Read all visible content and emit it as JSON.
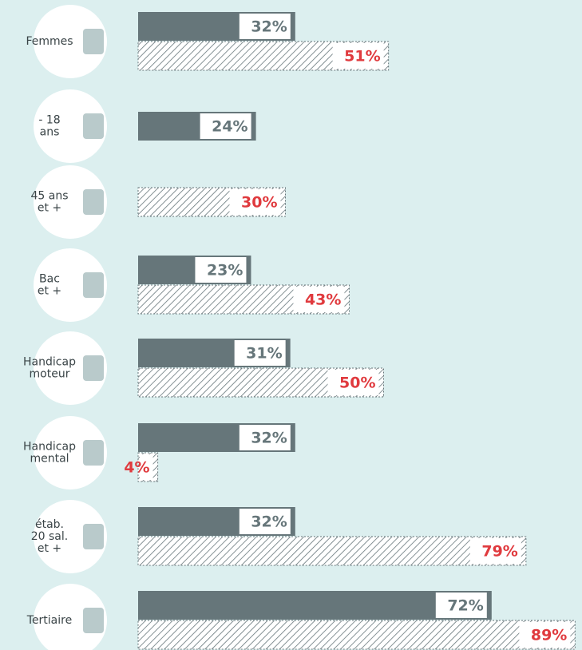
{
  "chart_data": {
    "type": "bar",
    "orientation": "horizontal",
    "categories": [
      "Femmes",
      "- 18\nans",
      "45 ans\net +",
      "Bac\net +",
      "Handicap\nmoteur",
      "Handicap\nmental",
      "étab.\n20 sal.\net +",
      "Tertiaire"
    ],
    "series": [
      {
        "color": "#66767a",
        "values": [
          32,
          24,
          null,
          23,
          31,
          32,
          32,
          72
        ],
        "value_labels": [
          "32%",
          "24%",
          null,
          "23%",
          "31%",
          "32%",
          "32%",
          "72%"
        ]
      },
      {
        "color": "#e03a3e",
        "values": [
          51,
          null,
          30,
          43,
          50,
          4,
          79,
          89
        ],
        "value_labels": [
          "51%",
          null,
          "30%",
          "43%",
          "50%",
          "4%",
          "79%",
          "89%"
        ]
      }
    ]
  }
}
